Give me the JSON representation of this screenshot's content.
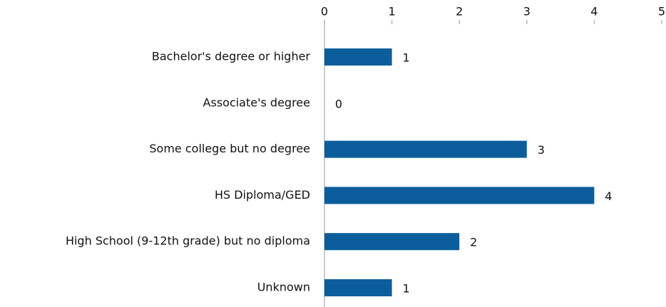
{
  "chart_data": {
    "type": "bar",
    "orientation": "horizontal",
    "categories": [
      "Bachelor's degree or higher",
      "Associate's degree",
      "Some college but no degree",
      "HS Diploma/GED",
      "High School (9-12th grade) but no diploma",
      "Unknown"
    ],
    "values": [
      1,
      0,
      3,
      4,
      2,
      1
    ],
    "color": "#0b5e9b",
    "xlim": [
      0,
      5
    ],
    "xticks": [
      0,
      1,
      2,
      3,
      4,
      5
    ],
    "grid": false
  }
}
